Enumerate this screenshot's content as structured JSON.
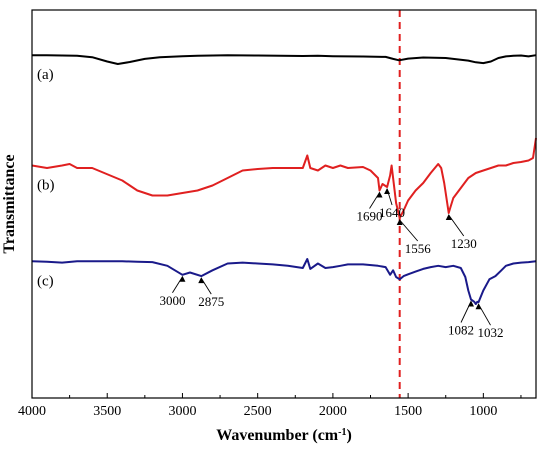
{
  "chart_data": {
    "type": "line",
    "title": "",
    "xlabel": "Wavenumber (cm",
    "xlabel_sup": "-1",
    "xlabel_suffix": ")",
    "ylabel": "Transmittance",
    "xlim": [
      4000,
      650
    ],
    "x_reversed": true,
    "y_ticks_shown": false,
    "x_ticks": [
      4000,
      3500,
      3000,
      2500,
      2000,
      1500,
      1000
    ],
    "x_tick_labels": [
      "4000",
      "3500",
      "3000",
      "2500",
      "2000",
      "1500",
      "1000"
    ],
    "grid": false,
    "legend": "none",
    "reference_line": {
      "x": 1556,
      "style": "dashed",
      "color": "#e02020"
    },
    "series": [
      {
        "name": "(a)",
        "color": "#000000",
        "points": [
          [
            4000,
            0.52
          ],
          [
            3900,
            0.51
          ],
          [
            3800,
            0.5
          ],
          [
            3700,
            0.48
          ],
          [
            3600,
            0.4
          ],
          [
            3500,
            0.15
          ],
          [
            3430,
            0.0
          ],
          [
            3350,
            0.12
          ],
          [
            3250,
            0.3
          ],
          [
            3150,
            0.4
          ],
          [
            3000,
            0.46
          ],
          [
            2900,
            0.48
          ],
          [
            2700,
            0.52
          ],
          [
            2500,
            0.5
          ],
          [
            2200,
            0.47
          ],
          [
            2100,
            0.48
          ],
          [
            2000,
            0.46
          ],
          [
            1800,
            0.44
          ],
          [
            1650,
            0.42
          ],
          [
            1600,
            0.3
          ],
          [
            1560,
            0.22
          ],
          [
            1500,
            0.32
          ],
          [
            1400,
            0.38
          ],
          [
            1250,
            0.35
          ],
          [
            1100,
            0.2
          ],
          [
            1050,
            0.1
          ],
          [
            1000,
            0.05
          ],
          [
            950,
            0.15
          ],
          [
            900,
            0.35
          ],
          [
            850,
            0.45
          ],
          [
            800,
            0.48
          ],
          [
            750,
            0.5
          ],
          [
            700,
            0.45
          ],
          [
            650,
            0.52
          ]
        ]
      },
      {
        "name": "(b)",
        "color": "#e02020",
        "points": [
          [
            4000,
            1.05
          ],
          [
            3900,
            1.0
          ],
          [
            3800,
            1.05
          ],
          [
            3750,
            1.08
          ],
          [
            3700,
            1.0
          ],
          [
            3600,
            1.0
          ],
          [
            3400,
            0.75
          ],
          [
            3300,
            0.55
          ],
          [
            3200,
            0.45
          ],
          [
            3100,
            0.45
          ],
          [
            3000,
            0.5
          ],
          [
            2900,
            0.55
          ],
          [
            2800,
            0.65
          ],
          [
            2700,
            0.8
          ],
          [
            2600,
            0.95
          ],
          [
            2500,
            0.98
          ],
          [
            2400,
            1.0
          ],
          [
            2300,
            1.0
          ],
          [
            2200,
            1.0
          ],
          [
            2170,
            1.25
          ],
          [
            2150,
            1.0
          ],
          [
            2100,
            0.95
          ],
          [
            2050,
            1.05
          ],
          [
            2000,
            1.0
          ],
          [
            1950,
            1.05
          ],
          [
            1900,
            1.0
          ],
          [
            1800,
            1.02
          ],
          [
            1750,
            0.95
          ],
          [
            1700,
            0.8
          ],
          [
            1690,
            0.55
          ],
          [
            1670,
            0.68
          ],
          [
            1640,
            0.62
          ],
          [
            1620,
            0.85
          ],
          [
            1610,
            1.05
          ],
          [
            1600,
            0.8
          ],
          [
            1580,
            0.3
          ],
          [
            1556,
            0.0
          ],
          [
            1530,
            0.15
          ],
          [
            1500,
            0.35
          ],
          [
            1450,
            0.55
          ],
          [
            1400,
            0.7
          ],
          [
            1350,
            0.9
          ],
          [
            1300,
            1.08
          ],
          [
            1280,
            1.0
          ],
          [
            1260,
            0.7
          ],
          [
            1240,
            0.3
          ],
          [
            1230,
            0.1
          ],
          [
            1220,
            0.2
          ],
          [
            1200,
            0.4
          ],
          [
            1150,
            0.6
          ],
          [
            1100,
            0.8
          ],
          [
            1050,
            0.9
          ],
          [
            1000,
            0.95
          ],
          [
            950,
            1.0
          ],
          [
            900,
            1.05
          ],
          [
            850,
            1.05
          ],
          [
            800,
            1.1
          ],
          [
            750,
            1.12
          ],
          [
            700,
            1.15
          ],
          [
            670,
            1.2
          ],
          [
            650,
            1.6
          ]
        ]
      },
      {
        "name": "(c)",
        "color": "#1a1a8a",
        "points": [
          [
            4000,
            0.95
          ],
          [
            3900,
            0.94
          ],
          [
            3800,
            0.92
          ],
          [
            3700,
            0.95
          ],
          [
            3600,
            0.95
          ],
          [
            3500,
            0.95
          ],
          [
            3400,
            0.95
          ],
          [
            3300,
            0.94
          ],
          [
            3200,
            0.93
          ],
          [
            3100,
            0.85
          ],
          [
            3000,
            0.65
          ],
          [
            2950,
            0.7
          ],
          [
            2875,
            0.62
          ],
          [
            2800,
            0.75
          ],
          [
            2700,
            0.9
          ],
          [
            2600,
            0.92
          ],
          [
            2500,
            0.9
          ],
          [
            2400,
            0.88
          ],
          [
            2300,
            0.85
          ],
          [
            2200,
            0.8
          ],
          [
            2170,
            1.0
          ],
          [
            2150,
            0.78
          ],
          [
            2100,
            0.9
          ],
          [
            2050,
            0.8
          ],
          [
            2000,
            0.82
          ],
          [
            1950,
            0.85
          ],
          [
            1900,
            0.88
          ],
          [
            1800,
            0.88
          ],
          [
            1700,
            0.85
          ],
          [
            1650,
            0.82
          ],
          [
            1620,
            0.65
          ],
          [
            1600,
            0.75
          ],
          [
            1580,
            0.6
          ],
          [
            1556,
            0.55
          ],
          [
            1530,
            0.62
          ],
          [
            1500,
            0.66
          ],
          [
            1450,
            0.72
          ],
          [
            1400,
            0.78
          ],
          [
            1350,
            0.82
          ],
          [
            1300,
            0.85
          ],
          [
            1250,
            0.82
          ],
          [
            1200,
            0.85
          ],
          [
            1150,
            0.8
          ],
          [
            1120,
            0.6
          ],
          [
            1100,
            0.3
          ],
          [
            1082,
            0.1
          ],
          [
            1060,
            0.05
          ],
          [
            1050,
            0.0
          ],
          [
            1040,
            0.05
          ],
          [
            1032,
            0.04
          ],
          [
            1000,
            0.3
          ],
          [
            960,
            0.55
          ],
          [
            920,
            0.62
          ],
          [
            880,
            0.75
          ],
          [
            850,
            0.85
          ],
          [
            800,
            0.9
          ],
          [
            750,
            0.92
          ],
          [
            700,
            0.93
          ],
          [
            650,
            0.95
          ]
        ]
      }
    ],
    "annotations": [
      {
        "series": 1,
        "label": "1690",
        "x": 1690,
        "text_dx": -10,
        "text_dy": 30
      },
      {
        "series": 1,
        "label": "1640",
        "x": 1640,
        "text_dx": 5,
        "text_dy": 30
      },
      {
        "series": 1,
        "label": "1556",
        "x": 1556,
        "text_dx": 18,
        "text_dy": 35
      },
      {
        "series": 1,
        "label": "1230",
        "x": 1230,
        "text_dx": 15,
        "text_dy": 35
      },
      {
        "series": 2,
        "label": "3000",
        "x": 3000,
        "text_dx": -10,
        "text_dy": 30
      },
      {
        "series": 2,
        "label": "2875",
        "x": 2875,
        "text_dx": 10,
        "text_dy": 30
      },
      {
        "series": 2,
        "label": "1082",
        "x": 1082,
        "text_dx": -10,
        "text_dy": 35
      },
      {
        "series": 2,
        "label": "1032",
        "x": 1032,
        "text_dx": 12,
        "text_dy": 35
      }
    ]
  }
}
